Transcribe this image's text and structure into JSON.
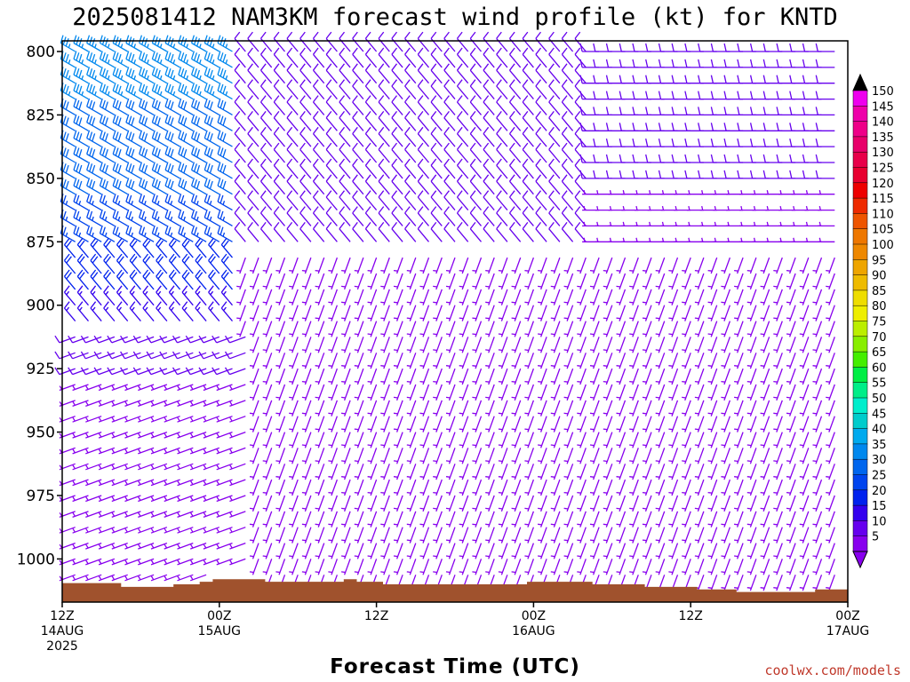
{
  "chart_data": {
    "type": "wind-barb-time-height",
    "title": "2025081412 NAM3KM forecast wind profile (kt) for KNTD",
    "xlabel": "Forecast Time (UTC)",
    "ylabel": "",
    "y_ticks": [
      "800",
      "825",
      "850",
      "875",
      "900",
      "925",
      "950",
      "975",
      "1000"
    ],
    "ylim": [
      800,
      1017
    ],
    "y_axis_inverted": true,
    "x_ticks": [
      {
        "hour": 0,
        "line1": "12Z",
        "line2": "14AUG",
        "line3": "2025"
      },
      {
        "hour": 12,
        "line1": "00Z",
        "line2": "15AUG",
        "line3": ""
      },
      {
        "hour": 24,
        "line1": "12Z",
        "line2": "",
        "line3": ""
      },
      {
        "hour": 36,
        "line1": "00Z",
        "line2": "16AUG",
        "line3": ""
      },
      {
        "hour": 48,
        "line1": "12Z",
        "line2": "",
        "line3": ""
      },
      {
        "hour": 60,
        "line1": "00Z",
        "line2": "17AUG",
        "line3": ""
      }
    ],
    "xlim": [
      0,
      60
    ],
    "time_step_hours": 1,
    "level_step_hpa": 12.5,
    "surface_color": "#a0522d",
    "surface_pressure_hpa": [
      1009.5,
      1009.5,
      1009.5,
      1009.5,
      1009.5,
      1011,
      1011,
      1011,
      1011,
      1010,
      1010,
      1009,
      1008,
      1008,
      1008,
      1008,
      1009,
      1009,
      1009,
      1009,
      1009,
      1009,
      1008,
      1009,
      1009,
      1010,
      1010,
      1010,
      1010,
      1010,
      1010,
      1010,
      1010,
      1010,
      1010,
      1010,
      1009,
      1009,
      1009,
      1009,
      1009,
      1010,
      1010,
      1010,
      1010,
      1011,
      1011,
      1011,
      1011,
      1012,
      1012,
      1012,
      1013,
      1013,
      1013,
      1013,
      1013,
      1013,
      1012,
      1012,
      1012
    ],
    "wind_regimes": [
      {
        "t_from": 0,
        "t_to": 13,
        "p_from": 800,
        "p_to": 880,
        "direction_deg": 300,
        "speed_kt_top": 35,
        "speed_kt_bottom": 25
      },
      {
        "t_from": 0,
        "t_to": 13,
        "p_from": 880,
        "p_to": 912,
        "direction_deg": 320,
        "speed_kt_top": 22,
        "speed_kt_bottom": 12
      },
      {
        "t_from": 0,
        "t_to": 14,
        "p_from": 912,
        "p_to": 1012,
        "direction_deg": 250,
        "speed_kt_top": 8,
        "speed_kt_bottom": 5
      },
      {
        "t_from": 14,
        "t_to": 40,
        "p_from": 800,
        "p_to": 880,
        "direction_deg": 320,
        "speed_kt_top": 12,
        "speed_kt_bottom": 8
      },
      {
        "t_from": 14,
        "t_to": 60,
        "p_from": 880,
        "p_to": 1012,
        "direction_deg": 200,
        "speed_kt_top": 7,
        "speed_kt_bottom": 5
      },
      {
        "t_from": 40,
        "t_to": 60,
        "p_from": 800,
        "p_to": 880,
        "direction_deg": 270,
        "speed_kt_top": 10,
        "speed_kt_bottom": 6
      }
    ],
    "colorbar": {
      "min": 5,
      "max": 150,
      "step": 5,
      "labels": [
        "150",
        "145",
        "140",
        "135",
        "130",
        "125",
        "120",
        "115",
        "110",
        "105",
        "100",
        "95",
        "90",
        "85",
        "80",
        "75",
        "70",
        "65",
        "60",
        "55",
        "50",
        "45",
        "40",
        "35",
        "30",
        "25",
        "20",
        "15",
        "10",
        "5"
      ],
      "colors": [
        "#ee00ee",
        "#ee00aa",
        "#ee0088",
        "#e8006a",
        "#e8004a",
        "#e80030",
        "#ee0000",
        "#ee2a00",
        "#ee5500",
        "#ee7700",
        "#ee8800",
        "#eea500",
        "#eebb00",
        "#eedd00",
        "#eeee00",
        "#bbee00",
        "#88ee00",
        "#44ee00",
        "#00ee44",
        "#00ee88",
        "#00eecc",
        "#00cccc",
        "#00aaee",
        "#0088ee",
        "#0066ee",
        "#0044ee",
        "#0022ee",
        "#3300ee",
        "#6600ee",
        "#8800ee"
      ],
      "top_cap_color": "#000000"
    }
  },
  "credit": "coolwx.com/models"
}
